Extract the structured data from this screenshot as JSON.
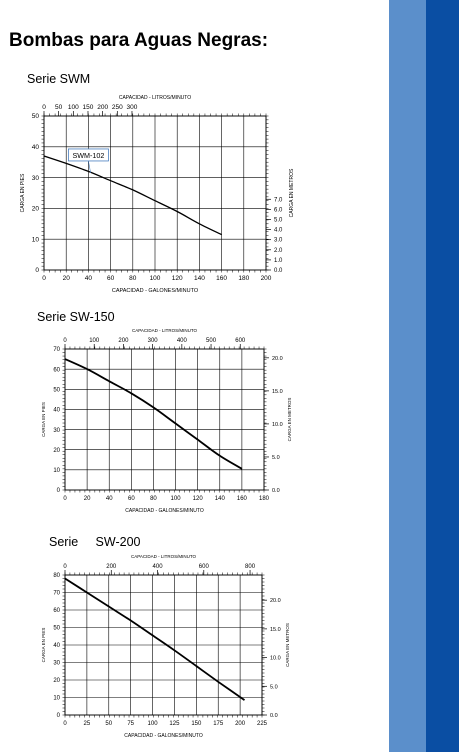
{
  "page": {
    "title": "Bombas para Aguas Negras:",
    "colors": {
      "band_light": "#5b8fcb",
      "band_dark": "#0a4ea3"
    }
  },
  "chart_data": [
    {
      "type": "line",
      "title": "Serie SWM",
      "top_axis_label": "CAPACIDAD - LITROS/MINUTO",
      "xlabel": "CAPACIDAD - GALONES/MINUTO",
      "ylabel": "CARGA EN PIES",
      "right_axis_label": "CARGA EN METROS",
      "xlim": [
        0,
        200
      ],
      "ylim": [
        0,
        50
      ],
      "x_ticks": [
        0,
        20,
        40,
        60,
        80,
        100,
        120,
        140,
        160,
        180,
        200
      ],
      "y_ticks": [
        0,
        10,
        20,
        30,
        40,
        50
      ],
      "top_ticks": [
        "0",
        "50",
        "100",
        "150",
        "200",
        "250",
        "300"
      ],
      "right_ticks": [
        "0.0",
        "1.0",
        "2.0",
        "3.0",
        "4.0",
        "5.0",
        "6.0",
        "7.0"
      ],
      "grid": true,
      "series": [
        {
          "label_box": "SWM-102",
          "x": [
            0,
            20,
            40,
            60,
            80,
            100,
            120,
            140,
            160
          ],
          "y": [
            37,
            34.6,
            32,
            29,
            26,
            22.5,
            19,
            15,
            11.5
          ]
        }
      ]
    },
    {
      "type": "line",
      "title": "Serie SW-150",
      "top_axis_label": "CAPACIDAD - LITROS/MINUTO",
      "xlabel": "CAPACIDAD - GALONES/MINUTO",
      "ylabel": "CARGA EN PIES",
      "right_axis_label": "CARGA EN METROS",
      "xlim": [
        0,
        180
      ],
      "ylim": [
        0,
        70
      ],
      "x_ticks": [
        0,
        20,
        40,
        60,
        80,
        100,
        120,
        140,
        160,
        180
      ],
      "y_ticks": [
        0,
        10,
        20,
        30,
        40,
        50,
        60,
        70
      ],
      "top_ticks": [
        "0",
        "100",
        "200",
        "300",
        "400",
        "500",
        "600"
      ],
      "right_ticks": [
        "0.0",
        "5.0",
        "10.0",
        "15.0",
        "20.0"
      ],
      "grid": true,
      "series": [
        {
          "x": [
            0,
            20,
            40,
            60,
            80,
            100,
            120,
            140,
            160
          ],
          "y": [
            65,
            60,
            54,
            48,
            41,
            33,
            25,
            17,
            10.5
          ]
        }
      ]
    },
    {
      "type": "line",
      "title": "Serie     SW-200",
      "top_axis_label": "CAPACIDAD - LITROS/MINUTO",
      "xlabel": "CAPACIDAD - GALONES/MINUTO",
      "ylabel": "CARGA EN PIES",
      "right_axis_label": "CARGA EN METROS",
      "xlim": [
        0,
        225
      ],
      "ylim": [
        0,
        80
      ],
      "x_ticks": [
        0,
        25,
        50,
        75,
        100,
        125,
        150,
        175,
        200,
        225
      ],
      "y_ticks": [
        0,
        10,
        20,
        30,
        40,
        50,
        60,
        70,
        80
      ],
      "top_ticks": [
        "0",
        "200",
        "400",
        "600",
        "800"
      ],
      "right_ticks": [
        "0.0",
        "5.0",
        "10.0",
        "15.0",
        "20.0"
      ],
      "grid": true,
      "series": [
        {
          "x": [
            0,
            25,
            50,
            75,
            100,
            125,
            150,
            175,
            205
          ],
          "y": [
            78,
            70,
            62,
            54,
            45.5,
            37,
            28,
            19,
            8.5
          ]
        }
      ]
    }
  ]
}
